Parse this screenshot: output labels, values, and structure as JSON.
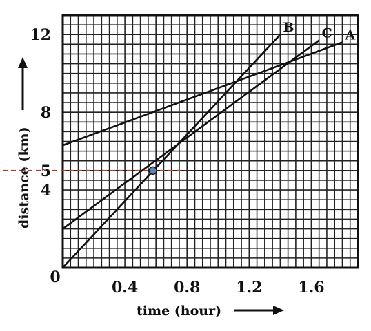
{
  "chart_data": {
    "type": "line",
    "xlabel": "time (hour)",
    "ylabel": "distance (km)",
    "xlim": [
      0,
      1.9
    ],
    "ylim": [
      0,
      13
    ],
    "x_ticks": [
      "0.4",
      "0.8",
      "1.2",
      "1.6"
    ],
    "x_tick_values": [
      0.4,
      0.8,
      1.2,
      1.6
    ],
    "origin_label": "0",
    "y_ticks": [
      "4",
      "5",
      "8",
      "12"
    ],
    "y_tick_values": [
      4,
      5,
      8,
      12
    ],
    "grid": true,
    "series": [
      {
        "name": "A",
        "x": [
          0,
          1.8
        ],
        "y": [
          6.3,
          11.6
        ]
      },
      {
        "name": "B",
        "x": [
          0,
          1.4
        ],
        "y": [
          0,
          12
        ]
      },
      {
        "name": "C",
        "x": [
          0,
          1.65
        ],
        "y": [
          2.0,
          11.7
        ]
      }
    ],
    "highlight_point": {
      "x": 0.58,
      "y": 5.0
    },
    "line_color": "#111111",
    "highlight_color": "#c0392b",
    "point_fill": "#5f7fb0"
  }
}
